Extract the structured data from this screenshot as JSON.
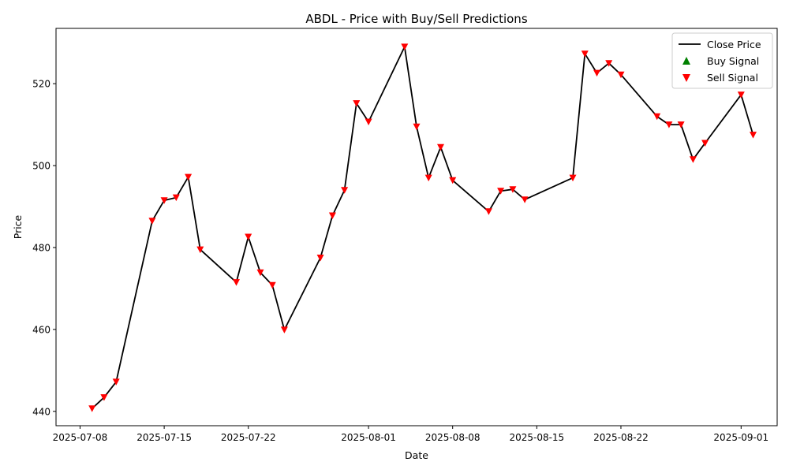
{
  "chart_data": {
    "type": "line",
    "title": "ABDL - Price with Buy/Sell Predictions",
    "xlabel": "Date",
    "ylabel": "Price",
    "xlim": [
      "2025-07-06",
      "2025-09-04"
    ],
    "ylim": [
      436.5,
      533.5
    ],
    "x_ticks": [
      "2025-07-08",
      "2025-07-15",
      "2025-07-22",
      "2025-08-01",
      "2025-08-08",
      "2025-08-15",
      "2025-08-22",
      "2025-09-01"
    ],
    "y_ticks": [
      440,
      460,
      480,
      500,
      520
    ],
    "grid": false,
    "legend_position": "top-right",
    "colors": {
      "close": "#000000",
      "buy": "#008000",
      "sell": "#ff0000"
    },
    "series": [
      {
        "name": "Close Price",
        "kind": "line",
        "x": [
          "2025-07-09",
          "2025-07-10",
          "2025-07-11",
          "2025-07-14",
          "2025-07-15",
          "2025-07-16",
          "2025-07-17",
          "2025-07-18",
          "2025-07-21",
          "2025-07-22",
          "2025-07-23",
          "2025-07-24",
          "2025-07-25",
          "2025-07-28",
          "2025-07-29",
          "2025-07-30",
          "2025-07-31",
          "2025-08-01",
          "2025-08-04",
          "2025-08-05",
          "2025-08-06",
          "2025-08-07",
          "2025-08-08",
          "2025-08-11",
          "2025-08-12",
          "2025-08-13",
          "2025-08-14",
          "2025-08-18",
          "2025-08-19",
          "2025-08-20",
          "2025-08-21",
          "2025-08-22",
          "2025-08-25",
          "2025-08-26",
          "2025-08-27",
          "2025-08-28",
          "2025-08-29",
          "2025-09-01",
          "2025-09-02"
        ],
        "y": [
          440.7,
          443.4,
          447.2,
          486.5,
          491.5,
          492.2,
          497.2,
          479.5,
          471.5,
          482.6,
          473.9,
          470.8,
          459.9,
          477.5,
          487.8,
          494,
          515.2,
          510.7,
          529,
          509.5,
          497,
          504.5,
          496.4,
          488.8,
          493.8,
          494.2,
          491.7,
          497,
          527.3,
          522.6,
          525,
          522.2,
          512,
          510,
          510,
          501.5,
          505.5,
          517.3,
          507.5
        ]
      },
      {
        "name": "Buy Signal",
        "kind": "scatter",
        "x": [],
        "y": []
      },
      {
        "name": "Sell Signal",
        "kind": "scatter",
        "x": [
          "2025-07-09",
          "2025-07-10",
          "2025-07-11",
          "2025-07-14",
          "2025-07-15",
          "2025-07-16",
          "2025-07-17",
          "2025-07-18",
          "2025-07-21",
          "2025-07-22",
          "2025-07-23",
          "2025-07-24",
          "2025-07-25",
          "2025-07-28",
          "2025-07-29",
          "2025-07-30",
          "2025-07-31",
          "2025-08-01",
          "2025-08-04",
          "2025-08-05",
          "2025-08-06",
          "2025-08-07",
          "2025-08-08",
          "2025-08-11",
          "2025-08-12",
          "2025-08-13",
          "2025-08-14",
          "2025-08-18",
          "2025-08-19",
          "2025-08-20",
          "2025-08-21",
          "2025-08-22",
          "2025-08-25",
          "2025-08-26",
          "2025-08-27",
          "2025-08-28",
          "2025-08-29",
          "2025-09-01",
          "2025-09-02"
        ],
        "y": [
          440.7,
          443.4,
          447.2,
          486.5,
          491.5,
          492.2,
          497.2,
          479.5,
          471.5,
          482.6,
          473.9,
          470.8,
          459.9,
          477.5,
          487.8,
          494,
          515.2,
          510.7,
          529,
          509.5,
          497,
          504.5,
          496.4,
          488.8,
          493.8,
          494.2,
          491.7,
          497,
          527.3,
          522.6,
          525,
          522.2,
          512,
          510,
          510,
          501.5,
          505.5,
          517.3,
          507.5
        ]
      }
    ]
  }
}
